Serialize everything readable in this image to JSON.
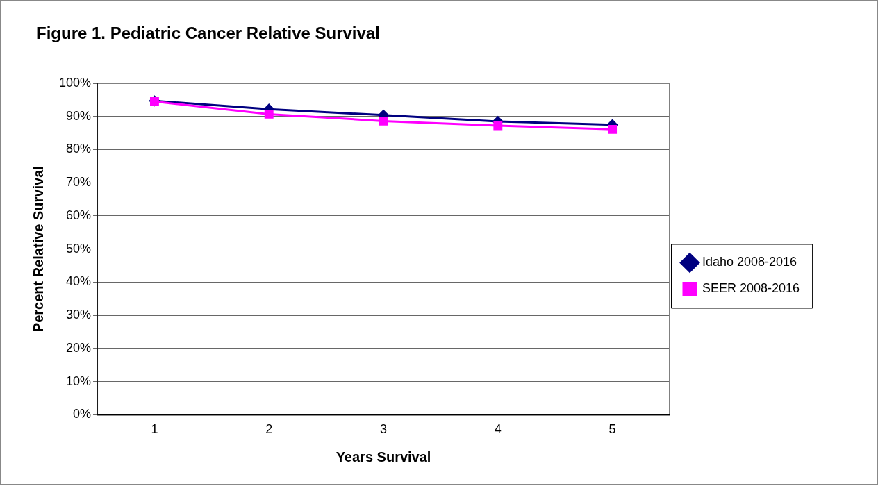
{
  "chart_data": {
    "type": "line",
    "title": "Figure 1. Pediatric Cancer Relative Survival",
    "xlabel": "Years Survival",
    "ylabel": "Percent Relative Survival",
    "categories": [
      "1",
      "2",
      "3",
      "4",
      "5"
    ],
    "series": [
      {
        "name": "Idaho 2008-2016",
        "color": "#000080",
        "marker": "diamond",
        "values": [
          94.7,
          92.2,
          90.4,
          88.5,
          87.5
        ]
      },
      {
        "name": "SEER 2008-2016",
        "color": "#ff00ff",
        "marker": "square",
        "values": [
          94.5,
          90.7,
          88.6,
          87.2,
          86.1
        ]
      }
    ],
    "ylim": [
      0,
      100
    ],
    "yticks": [
      {
        "value": 0,
        "label": "0%"
      },
      {
        "value": 10,
        "label": "10%"
      },
      {
        "value": 20,
        "label": "20%"
      },
      {
        "value": 30,
        "label": "30%"
      },
      {
        "value": 40,
        "label": "40%"
      },
      {
        "value": 50,
        "label": "50%"
      },
      {
        "value": 60,
        "label": "60%"
      },
      {
        "value": 70,
        "label": "70%"
      },
      {
        "value": 80,
        "label": "80%"
      },
      {
        "value": 90,
        "label": "90%"
      },
      {
        "value": 100,
        "label": "100%"
      }
    ],
    "grid": "y",
    "legend": "right",
    "line_style": "solid"
  }
}
